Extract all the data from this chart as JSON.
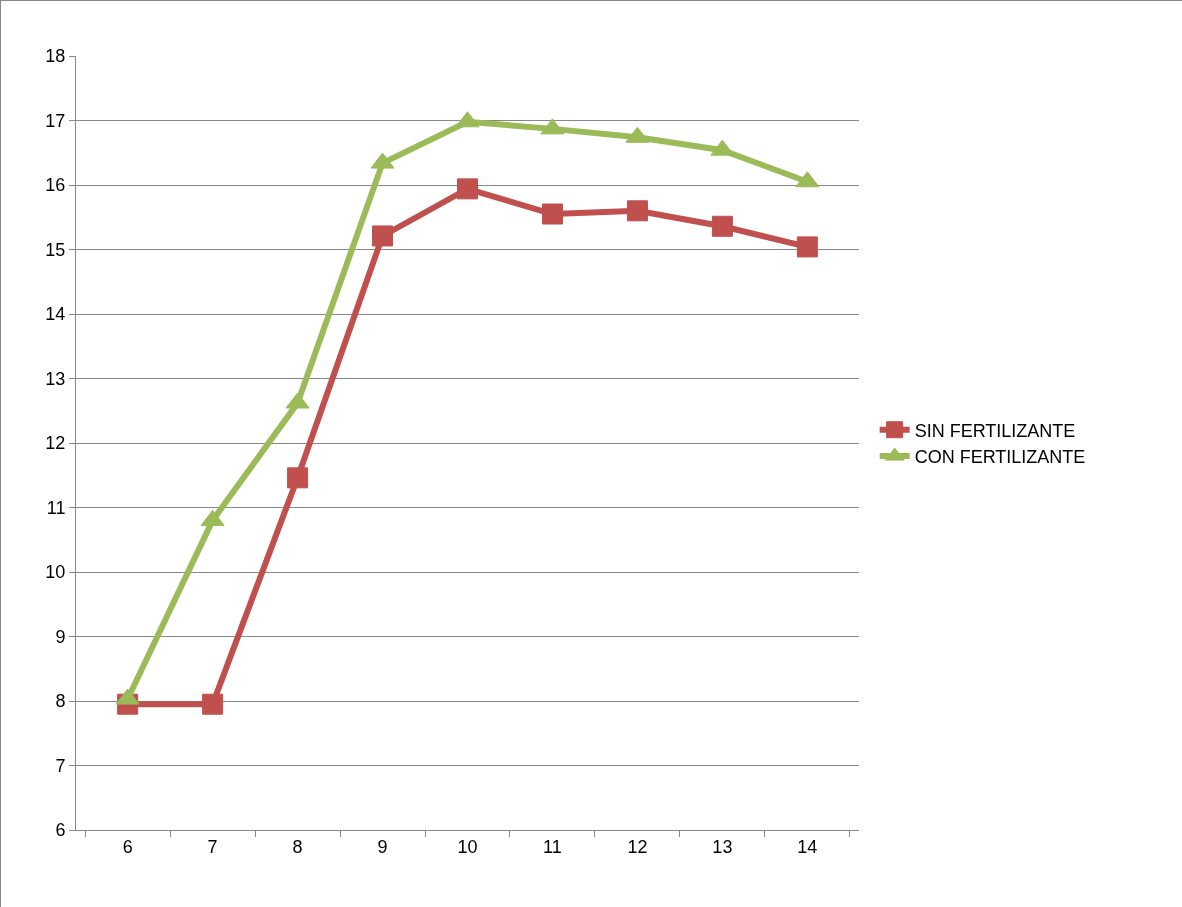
{
  "chart_data": {
    "type": "line",
    "categories": [
      "6",
      "7",
      "8",
      "9",
      "10",
      "11",
      "12",
      "13",
      "14"
    ],
    "series": [
      {
        "name": "SIN FERTILIZANTE",
        "color": "#c0504d",
        "marker": "square",
        "values": [
          7.95,
          7.95,
          11.46,
          15.21,
          15.94,
          15.55,
          15.6,
          15.36,
          15.04
        ]
      },
      {
        "name": "CON FERTILIZANTE",
        "color": "#9bbb59",
        "marker": "triangle",
        "values": [
          8.03,
          10.8,
          12.62,
          16.34,
          16.98,
          16.87,
          16.74,
          16.54,
          16.05
        ]
      }
    ],
    "ylim": [
      6,
      18
    ],
    "yticks": [
      6,
      7,
      8,
      9,
      10,
      11,
      12,
      13,
      14,
      15,
      16,
      17,
      18
    ],
    "grid": "y",
    "legend": "right",
    "line_style": "solid"
  }
}
